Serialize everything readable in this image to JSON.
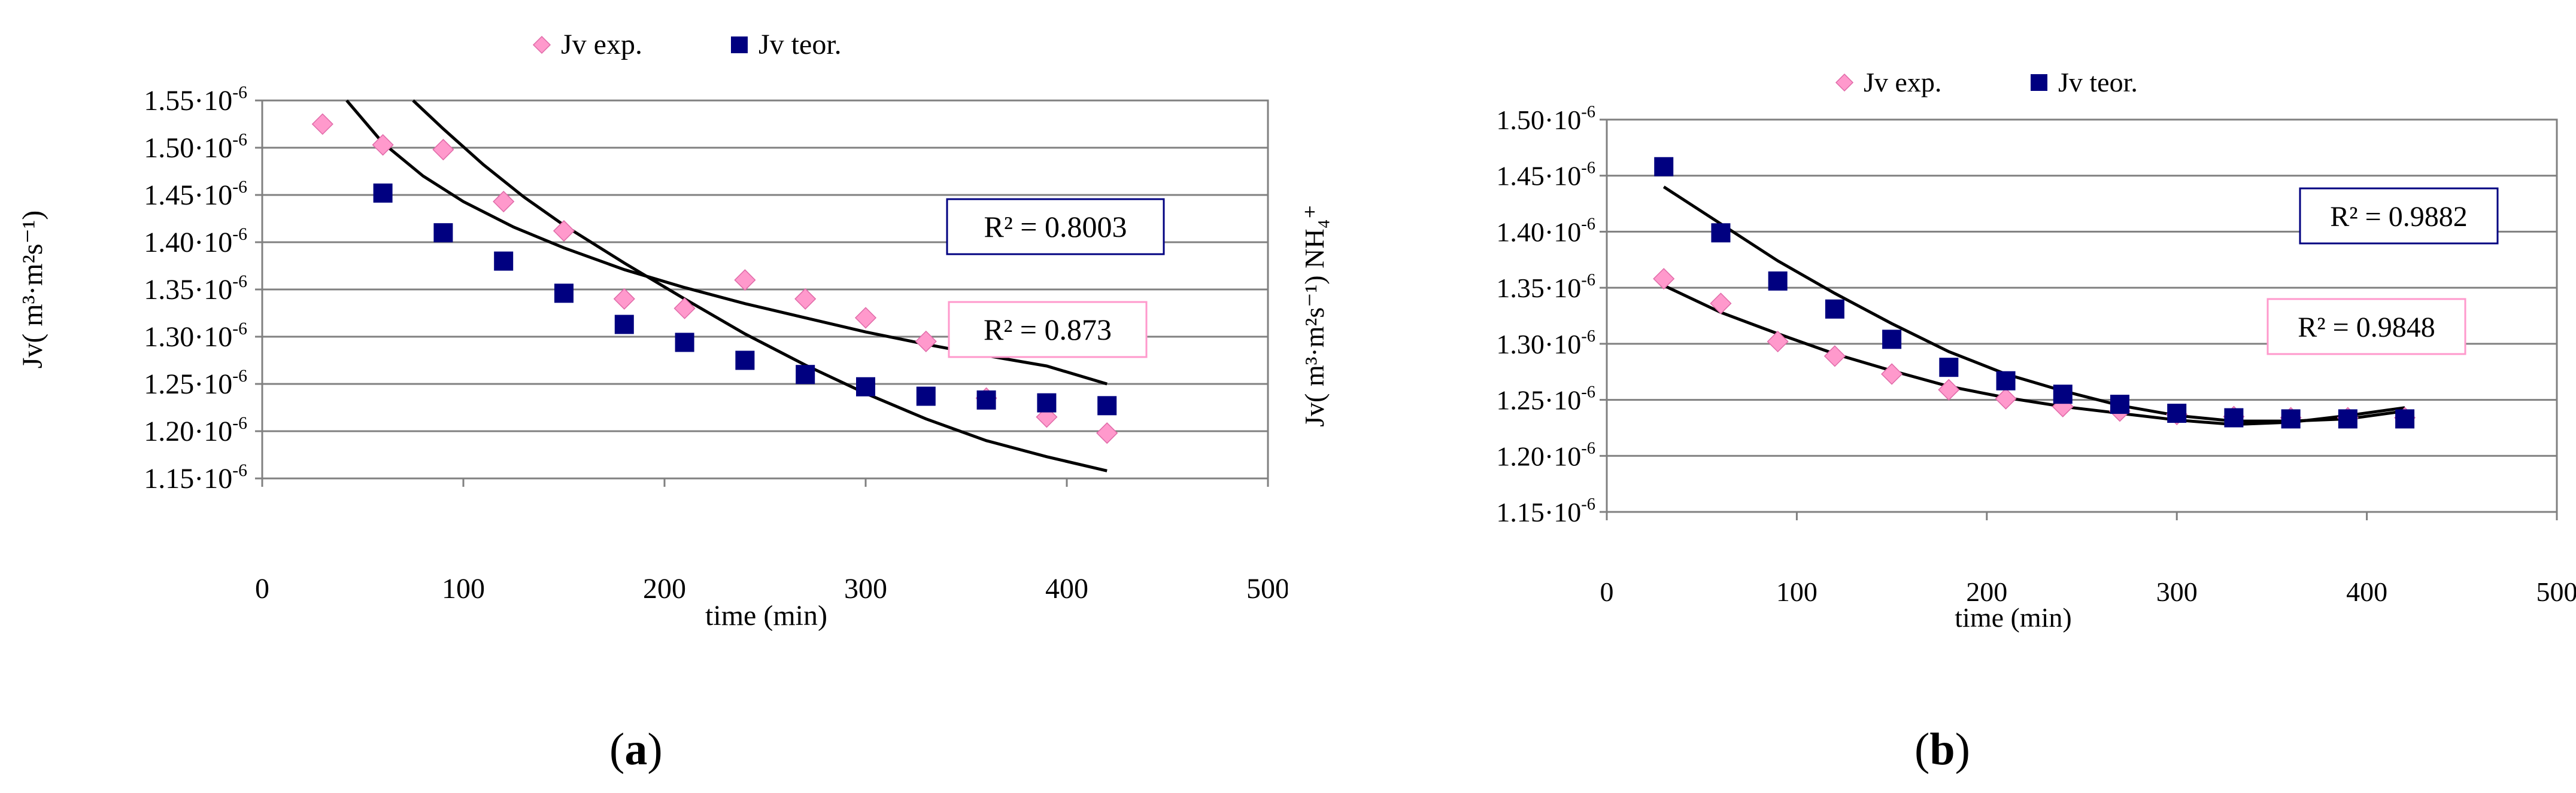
{
  "chart_data": [
    {
      "type": "scatter",
      "panel_label": "a",
      "legend": [
        "Jv exp.",
        "Jv teor."
      ],
      "xlabel": "time (min)",
      "ylabel": "Jv( m³·m²s⁻¹)",
      "xlim": [
        0,
        500
      ],
      "ylim": [
        1.15,
        1.55
      ],
      "y_scale_suffix": "10",
      "y_scale_exp": "-6",
      "xticks": [
        "0",
        "100",
        "200",
        "300",
        "400",
        "500"
      ],
      "yticks": [
        "1.15",
        "1.20",
        "1.25",
        "1.30",
        "1.35",
        "1.40",
        "1.45",
        "1.50",
        "1.55"
      ],
      "series": [
        {
          "name": "Jv exp.",
          "marker": "diamond",
          "color": "#FF99CC",
          "x": [
            30,
            60,
            90,
            120,
            150,
            180,
            210,
            240,
            270,
            300,
            330,
            360,
            390,
            420
          ],
          "y": [
            1.525,
            1.503,
            1.498,
            1.443,
            1.412,
            1.34,
            1.33,
            1.36,
            1.34,
            1.32,
            1.295,
            1.235,
            1.215,
            1.198
          ]
        },
        {
          "name": "Jv teor.",
          "marker": "square",
          "color": "#000080",
          "x": [
            60,
            90,
            120,
            150,
            180,
            210,
            240,
            270,
            300,
            330,
            360,
            390,
            420
          ],
          "y": [
            1.452,
            1.41,
            1.38,
            1.346,
            1.313,
            1.294,
            1.275,
            1.26,
            1.247,
            1.237,
            1.233,
            1.23,
            1.227
          ]
        }
      ],
      "trendlines": [
        {
          "x": [
            42,
            60,
            80,
            100,
            125,
            150,
            180,
            210,
            240,
            270,
            300,
            330,
            360,
            390,
            420
          ],
          "y": [
            1.55,
            1.505,
            1.47,
            1.443,
            1.416,
            1.394,
            1.371,
            1.352,
            1.335,
            1.32,
            1.305,
            1.292,
            1.28,
            1.269,
            1.25
          ]
        },
        {
          "x": [
            75,
            90,
            110,
            130,
            150,
            180,
            210,
            240,
            270,
            300,
            330,
            360,
            390,
            420
          ],
          "y": [
            1.55,
            1.52,
            1.482,
            1.448,
            1.418,
            1.378,
            1.34,
            1.303,
            1.27,
            1.24,
            1.213,
            1.19,
            1.173,
            1.158
          ]
        }
      ],
      "annotations": [
        "R² = 0.8003",
        "R² = 0.873"
      ]
    },
    {
      "type": "scatter",
      "panel_label": "b",
      "legend": [
        "Jv exp.",
        "Jv teor."
      ],
      "xlabel": "time (min)",
      "ylabel": "Jv( m³·m²s⁻¹) NH₄⁺",
      "xlim": [
        0,
        500
      ],
      "ylim": [
        1.15,
        1.5
      ],
      "y_scale_suffix": "10",
      "y_scale_exp": "-6",
      "xticks": [
        "0",
        "100",
        "200",
        "300",
        "400",
        "500"
      ],
      "yticks": [
        "1.15",
        "1.20",
        "1.25",
        "1.30",
        "1.35",
        "1.40",
        "1.45",
        "1.50"
      ],
      "series": [
        {
          "name": "Jv exp.",
          "marker": "diamond",
          "color": "#FF99CC",
          "x": [
            30,
            60,
            90,
            120,
            150,
            180,
            210,
            240,
            270,
            300,
            330,
            360,
            390,
            420
          ],
          "y": [
            1.358,
            1.336,
            1.302,
            1.289,
            1.273,
            1.259,
            1.251,
            1.244,
            1.24,
            1.237,
            1.235,
            1.234,
            1.234,
            1.234
          ]
        },
        {
          "name": "Jv teor.",
          "marker": "square",
          "color": "#000080",
          "x": [
            30,
            60,
            90,
            120,
            150,
            180,
            210,
            240,
            270,
            300,
            330,
            360,
            390,
            420
          ],
          "y": [
            1.458,
            1.399,
            1.356,
            1.331,
            1.304,
            1.279,
            1.267,
            1.255,
            1.246,
            1.238,
            1.234,
            1.233,
            1.233,
            1.233
          ]
        }
      ],
      "trendlines": [
        {
          "x": [
            30,
            60,
            90,
            120,
            150,
            180,
            210,
            240,
            270,
            300,
            330,
            360,
            390,
            420
          ],
          "y": [
            1.44,
            1.407,
            1.374,
            1.345,
            1.318,
            1.293,
            1.273,
            1.258,
            1.245,
            1.236,
            1.231,
            1.231,
            1.233,
            1.24
          ]
        },
        {
          "x": [
            30,
            60,
            90,
            120,
            150,
            180,
            210,
            240,
            270,
            300,
            330,
            360,
            390,
            420
          ],
          "y": [
            1.352,
            1.328,
            1.309,
            1.291,
            1.276,
            1.262,
            1.252,
            1.244,
            1.238,
            1.232,
            1.228,
            1.23,
            1.236,
            1.243
          ]
        }
      ],
      "annotations": [
        "R² = 0.9882",
        "R² = 0.9848"
      ]
    }
  ]
}
